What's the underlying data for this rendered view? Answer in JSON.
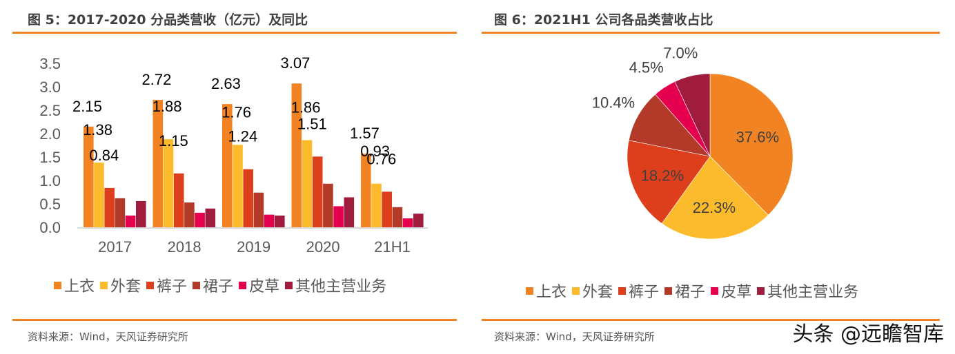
{
  "left": {
    "title": "图 5：2017-2020 分品类营收（亿元）及同比",
    "source": "资料来源：Wind，天风证券研究所"
  },
  "right": {
    "title": "图 6：2021H1 公司各品类营收占比",
    "source": "资料来源：Wind，天风证券研究所"
  },
  "watermark": "头条 @远瞻智库",
  "colors": {
    "rule": "#f08324",
    "series": [
      "#f28322",
      "#fbbb2c",
      "#dd3f1c",
      "#b33a29",
      "#e4004f",
      "#a01c3c"
    ]
  },
  "chart_data": [
    {
      "type": "bar",
      "title": "2017-2020 分品类营收（亿元）及同比",
      "xlabel": "",
      "ylabel": "",
      "ylim": [
        0,
        3.5
      ],
      "yticks": [
        "0.0",
        "0.5",
        "1.0",
        "1.5",
        "2.0",
        "2.5",
        "3.0",
        "3.5"
      ],
      "grid": false,
      "legend_position": "bottom",
      "categories": [
        "2017",
        "2018",
        "2019",
        "2020",
        "21H1"
      ],
      "series": [
        {
          "name": "上衣",
          "values": [
            2.15,
            2.72,
            2.63,
            3.07,
            1.57
          ],
          "labels": [
            "2.15",
            "2.72",
            "2.63",
            "3.07",
            "1.57"
          ]
        },
        {
          "name": "外套",
          "values": [
            1.38,
            1.88,
            1.76,
            1.86,
            0.93
          ],
          "labels": [
            "1.38",
            "1.88",
            "1.76",
            "1.86",
            "0.93"
          ]
        },
        {
          "name": "裤子",
          "values": [
            0.84,
            1.15,
            1.24,
            1.51,
            0.76
          ],
          "labels": [
            "0.84",
            "1.15",
            "1.24",
            "1.51",
            "0.76"
          ]
        },
        {
          "name": "裙子",
          "values": [
            0.62,
            0.53,
            0.74,
            0.93,
            0.43
          ],
          "labels": []
        },
        {
          "name": "皮草",
          "values": [
            0.25,
            0.31,
            0.27,
            0.45,
            0.19
          ],
          "labels": []
        },
        {
          "name": "其他主营业务",
          "values": [
            0.56,
            0.4,
            0.25,
            0.64,
            0.29
          ],
          "labels": []
        }
      ]
    },
    {
      "type": "pie",
      "title": "2021H1 公司各品类营收占比",
      "legend_position": "bottom",
      "slices": [
        {
          "name": "上衣",
          "value": 37.6,
          "label": "37.6%"
        },
        {
          "name": "外套",
          "value": 22.3,
          "label": "22.3%"
        },
        {
          "name": "裤子",
          "value": 18.2,
          "label": "18.2%"
        },
        {
          "name": "裙子",
          "value": 10.4,
          "label": "10.4%"
        },
        {
          "name": "皮草",
          "value": 4.5,
          "label": "4.5%"
        },
        {
          "name": "其他主营业务",
          "value": 7.0,
          "label": "7.0%"
        }
      ]
    }
  ]
}
